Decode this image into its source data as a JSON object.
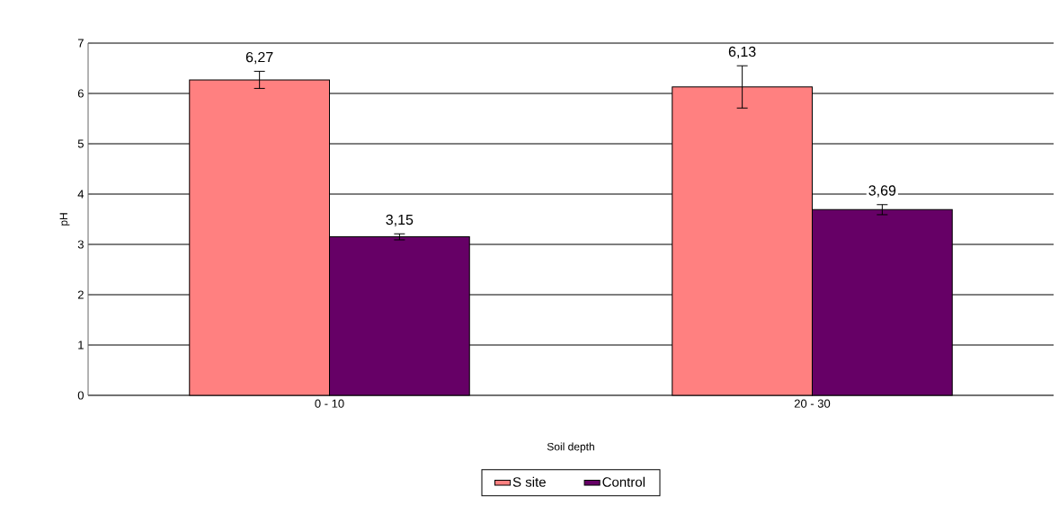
{
  "chart_data": {
    "type": "bar",
    "xlabel": "Soil depth",
    "ylabel": "pH",
    "categories": [
      "0 - 10",
      "20 - 30"
    ],
    "series": [
      {
        "name": "S site",
        "color": "#ff8080",
        "values": [
          6.27,
          6.13
        ],
        "errors": [
          0.17,
          0.42
        ],
        "value_labels": [
          "6,27",
          "6,13"
        ]
      },
      {
        "name": "Control",
        "color": "#660066",
        "values": [
          3.15,
          3.69
        ],
        "errors": [
          0.06,
          0.1
        ],
        "value_labels": [
          "3,15",
          "3,69"
        ]
      }
    ],
    "ylim": [
      0,
      7
    ],
    "yticks": [
      0,
      1,
      2,
      3,
      4,
      5,
      6,
      7
    ],
    "grid": "y",
    "legend": "bottom"
  }
}
